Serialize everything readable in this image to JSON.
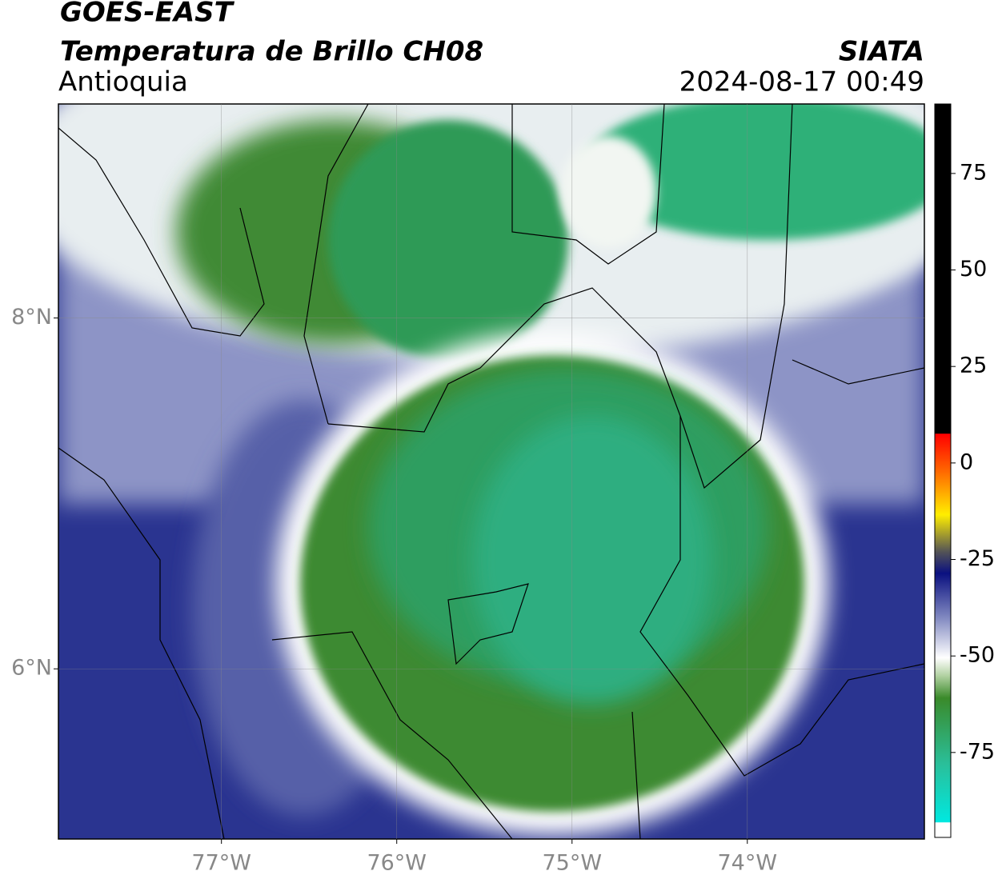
{
  "header": {
    "title": "GOES-EAST",
    "subtitle": "Temperatura de Brillo CH08",
    "region": "Antioquia",
    "source": "SIATA",
    "datetime": "2024-08-17 00:49"
  },
  "map": {
    "xlim": [
      -77.93,
      -72.99
    ],
    "ylim": [
      5.03,
      9.22
    ],
    "xticks": [
      {
        "value": -77,
        "label": "77°W"
      },
      {
        "value": -76,
        "label": "76°W"
      },
      {
        "value": -75,
        "label": "75°W"
      },
      {
        "value": -74,
        "label": "74°W"
      }
    ],
    "yticks": [
      {
        "value": 6,
        "label": "6°N"
      },
      {
        "value": 8,
        "label": "8°N"
      }
    ],
    "grid": true
  },
  "colorbar": {
    "lim": [
      -97,
      93
    ],
    "ticks": [
      -75,
      -50,
      -25,
      0,
      25,
      50,
      75
    ]
  }
}
